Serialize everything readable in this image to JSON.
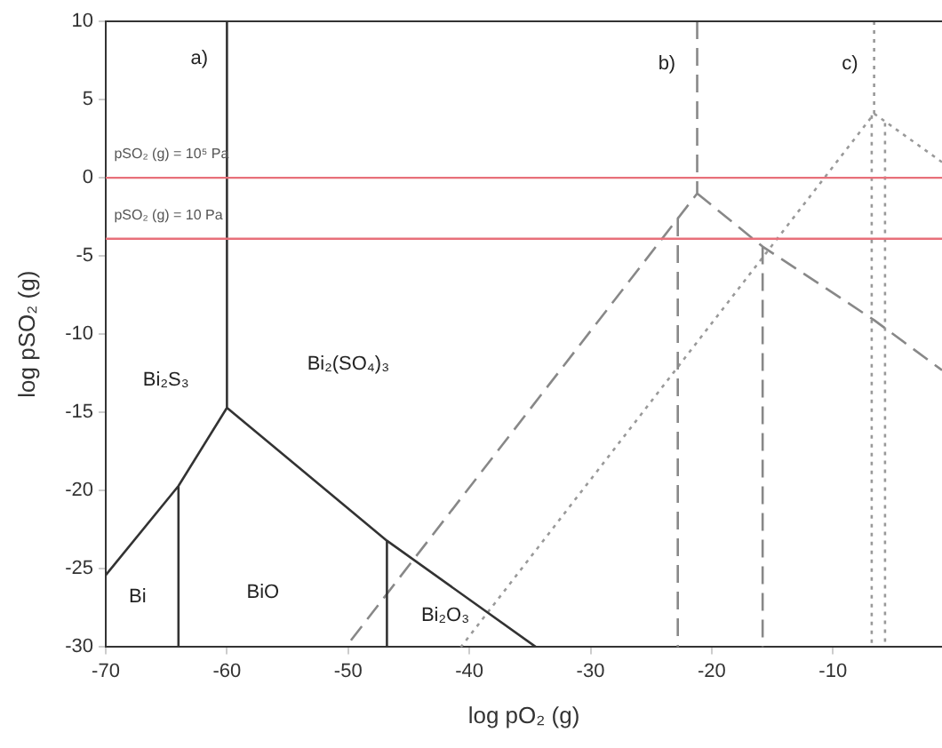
{
  "chart_data": {
    "type": "line",
    "xlabel": "log pO₂ (g)",
    "ylabel": "log pSO₂ (g)",
    "xlim": [
      -70,
      -1
    ],
    "xticks": [
      -70,
      -60,
      -50,
      -40,
      -30,
      -20,
      -10
    ],
    "ylim": [
      -30,
      10
    ],
    "yticks": [
      -30,
      -25,
      -20,
      -15,
      -10,
      -5,
      0,
      5,
      10
    ],
    "grid": false,
    "legend": false,
    "marker": "none",
    "series": [
      {
        "color": "#333333",
        "line_style": "solid",
        "x": [
          -60,
          -60,
          -64,
          -70,
          null,
          -64,
          -64,
          null,
          -60,
          -46.8,
          -34.5,
          null,
          -46.8,
          -46.8
        ],
        "values": [
          10,
          -14.7,
          -19.7,
          -25.4,
          null,
          -19.7,
          -30,
          null,
          -14.7,
          -23.2,
          -30,
          null,
          -23.2,
          -30
        ]
      },
      {
        "color": "#888888",
        "line_style": "dashed",
        "x": [
          -21.2,
          -21.2,
          -50.2,
          null,
          -22.8,
          -22.8,
          null,
          -21.2,
          -15.8,
          -6.6,
          -1,
          null,
          -15.8,
          -15.8
        ],
        "values": [
          10,
          -1,
          -30,
          null,
          -2.6,
          -30,
          null,
          -1,
          -4.4,
          -9.1,
          -12.3,
          null,
          -4.4,
          -30
        ]
      },
      {
        "color": "#999999",
        "line_style": "dotted",
        "x": [
          -6.6,
          -6.6,
          -40.7,
          null,
          -6.8,
          -6.8,
          null,
          -5.7,
          -5.7,
          null,
          -6.6,
          -1
        ],
        "values": [
          10,
          4.1,
          -30,
          null,
          4,
          -30,
          null,
          3.5,
          -30,
          null,
          4.1,
          1.0
        ]
      }
    ],
    "ref_lines": [
      {
        "axis": "y",
        "value": 0,
        "color": "#e8707a"
      },
      {
        "axis": "y",
        "value": -3.9,
        "color": "#e8707a"
      }
    ],
    "annotations": [
      "a)",
      "b)",
      "c)",
      "Bi₂S₃",
      "Bi₂(SO₄)₃",
      "Bi",
      "BiO",
      "Bi₂O₃",
      "pSO₂ (g) = 10⁵ Pa",
      "pSO₂ (g) = 10 Pa"
    ]
  }
}
